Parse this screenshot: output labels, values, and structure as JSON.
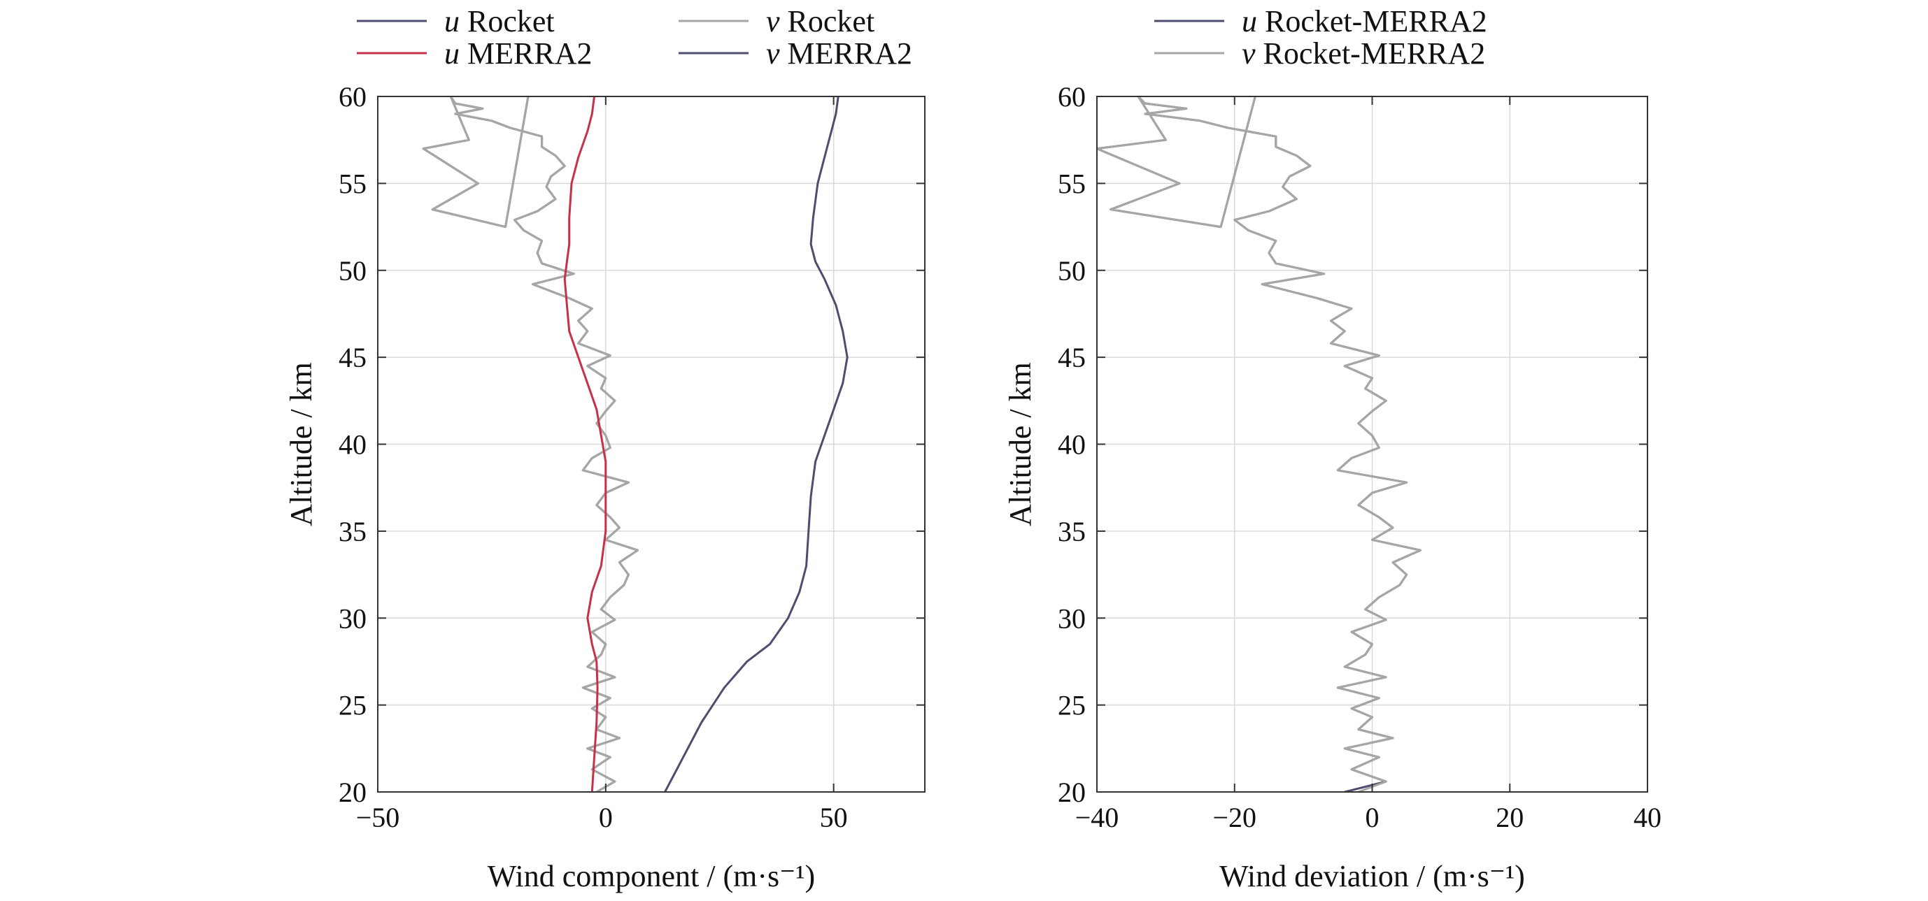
{
  "chart_data": [
    {
      "type": "line",
      "xlabel": "Wind component / (m·s⁻¹)",
      "ylabel": "Altitude / km",
      "xlim": [
        -50,
        70
      ],
      "ylim": [
        20,
        60
      ],
      "xticks": [
        -50,
        0,
        50
      ],
      "xtick_labels": [
        "−50",
        "0",
        "50"
      ],
      "yticks": [
        20,
        25,
        30,
        35,
        40,
        45,
        50,
        55,
        60
      ],
      "ytick_labels": [
        "20",
        "25",
        "30",
        "35",
        "40",
        "45",
        "50",
        "55",
        "60"
      ],
      "grid": true,
      "legend_position": "top",
      "series": [
        {
          "name": "u Rocket",
          "legend_var": "u",
          "legend_rest": " Rocket",
          "color": "#4d4d6f",
          "accent_color": "#6a5aad",
          "x": [
            -2,
            2,
            -3,
            1,
            -4,
            3,
            -2,
            0,
            -3,
            1,
            -5,
            2,
            -4,
            -1,
            0,
            -3,
            2,
            -1,
            1,
            4,
            5,
            3,
            7,
            0,
            3,
            1,
            -2,
            0,
            5,
            -5,
            -3,
            1,
            0,
            -2,
            0,
            2,
            -1,
            0,
            -4,
            1,
            -6,
            -4,
            -6,
            -3,
            -8,
            -16,
            -7,
            -14,
            -15,
            -14,
            -18,
            -20,
            -15,
            -11,
            -13,
            -12,
            -9,
            -11,
            -14,
            -14,
            -21,
            -25,
            -33,
            -27,
            -33,
            -34,
            -30,
            -40,
            -34,
            -28,
            -38,
            -22,
            -17
          ],
          "y": [
            20,
            20.6,
            21.3,
            22,
            22.5,
            23.1,
            23.6,
            24.3,
            24.8,
            25.4,
            26,
            26.6,
            27.2,
            27.9,
            28.5,
            29.2,
            29.9,
            30.5,
            31.2,
            31.9,
            32.5,
            33.2,
            33.9,
            34.5,
            35.2,
            35.8,
            36.5,
            37.2,
            37.8,
            38.5,
            39.2,
            39.8,
            40.5,
            41.2,
            41.9,
            42.5,
            43.2,
            43.8,
            44.5,
            45.1,
            45.8,
            46.5,
            47.1,
            47.8,
            48.4,
            49.2,
            49.8,
            50.4,
            51,
            51.7,
            52.3,
            52.9,
            53.4,
            54.1,
            54.8,
            55.4,
            56,
            56.6,
            57.1,
            57.7,
            58.2,
            58.6,
            59,
            59.3,
            59.6,
            60,
            57.5,
            57,
            56,
            55,
            53.5,
            52.5,
            60
          ]
        },
        {
          "name": "v Rocket",
          "legend_var": "v",
          "legend_rest": " Rocket",
          "color": "#a6a6a6",
          "accent_color": "#f0a050",
          "x": [
            -2,
            2,
            -3,
            1,
            -4,
            3,
            -2,
            0,
            -3,
            1,
            -5,
            2,
            -4,
            -1,
            0,
            -3,
            2,
            -1,
            1,
            4,
            5,
            3,
            7,
            0,
            3,
            1,
            -2,
            0,
            5,
            -5,
            -3,
            1,
            0,
            -2,
            0,
            2,
            -1,
            0,
            -4,
            1,
            -6,
            -4,
            -6,
            -3,
            -8,
            -16,
            -7,
            -14,
            -15,
            -14,
            -18,
            -20,
            -15,
            -11,
            -13,
            -12,
            -9,
            -11,
            -14,
            -14,
            -21,
            -25,
            -33,
            -27,
            -33,
            -34,
            -30,
            -40,
            -34,
            -28,
            -38,
            -22,
            -17
          ],
          "y": [
            20,
            20.6,
            21.3,
            22,
            22.5,
            23.1,
            23.6,
            24.3,
            24.8,
            25.4,
            26,
            26.6,
            27.2,
            27.9,
            28.5,
            29.2,
            29.9,
            30.5,
            31.2,
            31.9,
            32.5,
            33.2,
            33.9,
            34.5,
            35.2,
            35.8,
            36.5,
            37.2,
            37.8,
            38.5,
            39.2,
            39.8,
            40.5,
            41.2,
            41.9,
            42.5,
            43.2,
            43.8,
            44.5,
            45.1,
            45.8,
            46.5,
            47.1,
            47.8,
            48.4,
            49.2,
            49.8,
            50.4,
            51,
            51.7,
            52.3,
            52.9,
            53.4,
            54.1,
            54.8,
            55.4,
            56,
            56.6,
            57.1,
            57.7,
            58.2,
            58.6,
            59,
            59.3,
            59.6,
            60,
            57.5,
            57,
            56,
            55,
            53.5,
            52.5,
            60
          ]
        },
        {
          "name": "u MERRA2",
          "legend_var": "u",
          "legend_rest": " MERRA2",
          "color": "#c8304a",
          "x": [
            -3,
            -2.5,
            -2,
            -1.8,
            -2,
            -3,
            -4,
            -3,
            -1,
            0,
            0,
            0,
            -1,
            -2,
            -4,
            -6,
            -8,
            -8.5,
            -9,
            -8.5,
            -8,
            -8,
            -7.5,
            -6,
            -4,
            -3,
            -2.5
          ],
          "y": [
            20,
            22,
            24,
            26,
            27.5,
            28.5,
            30,
            31.5,
            33,
            35,
            37,
            39,
            40.5,
            42,
            43.5,
            45,
            46.5,
            48,
            49.5,
            50.5,
            51.5,
            53,
            55,
            56.5,
            58,
            59,
            60
          ]
        },
        {
          "name": "v MERRA2",
          "legend_var": "v",
          "legend_rest": " MERRA2",
          "color": "#4d4d6f",
          "x": [
            13,
            17,
            21,
            26,
            31,
            36,
            40,
            42.5,
            44,
            44.5,
            45,
            46,
            48,
            50,
            52,
            53,
            52,
            50.5,
            48,
            46,
            45,
            45.5,
            46.5,
            48,
            49.5,
            50.5,
            51
          ],
          "y": [
            20,
            22,
            24,
            26,
            27.5,
            28.5,
            30,
            31.5,
            33,
            35,
            37,
            39,
            40.5,
            42,
            43.5,
            45,
            46.5,
            48,
            49.5,
            50.5,
            51.5,
            53,
            55,
            56.5,
            58,
            59,
            60
          ]
        }
      ]
    },
    {
      "type": "line",
      "xlabel": "Wind deviation / (m·s⁻¹)",
      "ylabel": "Altitude / km",
      "xlim": [
        -40,
        40
      ],
      "ylim": [
        20,
        60
      ],
      "xticks": [
        -40,
        -20,
        0,
        20,
        40
      ],
      "xtick_labels": [
        "−40",
        "−20",
        "0",
        "20",
        "40"
      ],
      "yticks": [
        20,
        25,
        30,
        35,
        40,
        45,
        50,
        55,
        60
      ],
      "ytick_labels": [
        "20",
        "25",
        "30",
        "35",
        "40",
        "45",
        "50",
        "55",
        "60"
      ],
      "grid": true,
      "legend_position": "top",
      "series": [
        {
          "name": "u Rocket-MERRA2",
          "legend_var": "u",
          "legend_rest": " Rocket-MERRA2",
          "color": "#4d4d6f",
          "accent_color": "#6a5aad",
          "x": [
            -4,
            2,
            -3,
            1,
            -4,
            3,
            -2,
            0,
            -3,
            1,
            -5,
            2,
            -4,
            -1,
            0,
            -3,
            2,
            -1,
            1,
            4,
            5,
            3,
            7,
            0,
            3,
            1,
            -2,
            0,
            5,
            -5,
            -3,
            1,
            0,
            -2,
            0,
            2,
            -1,
            0,
            -4,
            1,
            -6,
            -4,
            -6,
            -3,
            -8,
            -16,
            -7,
            -14,
            -15,
            -14,
            -18,
            -20,
            -15,
            -11,
            -13,
            -12,
            -9,
            -11,
            -14,
            -14,
            -21,
            -25,
            -33,
            -27,
            -33,
            -34,
            -30,
            -40,
            -34,
            -28,
            -38,
            -22,
            -17
          ],
          "y": [
            20,
            20.6,
            21.3,
            22,
            22.5,
            23.1,
            23.6,
            24.3,
            24.8,
            25.4,
            26,
            26.6,
            27.2,
            27.9,
            28.5,
            29.2,
            29.9,
            30.5,
            31.2,
            31.9,
            32.5,
            33.2,
            33.9,
            34.5,
            35.2,
            35.8,
            36.5,
            37.2,
            37.8,
            38.5,
            39.2,
            39.8,
            40.5,
            41.2,
            41.9,
            42.5,
            43.2,
            43.8,
            44.5,
            45.1,
            45.8,
            46.5,
            47.1,
            47.8,
            48.4,
            49.2,
            49.8,
            50.4,
            51,
            51.7,
            52.3,
            52.9,
            53.4,
            54.1,
            54.8,
            55.4,
            56,
            56.6,
            57.1,
            57.7,
            58.2,
            58.6,
            59,
            59.3,
            59.6,
            60,
            57.5,
            57,
            56,
            55,
            53.5,
            52.5,
            60
          ]
        },
        {
          "name": "v Rocket-MERRA2",
          "legend_var": "v",
          "legend_rest": " Rocket-MERRA2",
          "color": "#a6a6a6",
          "accent_color": "#f0a050",
          "x": [
            -2,
            2,
            -3,
            1,
            -4,
            3,
            -2,
            0,
            -3,
            1,
            -5,
            2,
            -4,
            -1,
            0,
            -3,
            2,
            -1,
            1,
            4,
            5,
            3,
            7,
            0,
            3,
            1,
            -2,
            0,
            5,
            -5,
            -3,
            1,
            0,
            -2,
            0,
            2,
            -1,
            0,
            -4,
            1,
            -6,
            -4,
            -6,
            -3,
            -8,
            -16,
            -7,
            -14,
            -15,
            -14,
            -18,
            -20,
            -15,
            -11,
            -13,
            -12,
            -9,
            -11,
            -14,
            -14,
            -21,
            -25,
            -33,
            -27,
            -33,
            -34,
            -30,
            -40,
            -34,
            -28,
            -38,
            -22,
            -17
          ],
          "y": [
            20,
            20.6,
            21.3,
            22,
            22.5,
            23.1,
            23.6,
            24.3,
            24.8,
            25.4,
            26,
            26.6,
            27.2,
            27.9,
            28.5,
            29.2,
            29.9,
            30.5,
            31.2,
            31.9,
            32.5,
            33.2,
            33.9,
            34.5,
            35.2,
            35.8,
            36.5,
            37.2,
            37.8,
            38.5,
            39.2,
            39.8,
            40.5,
            41.2,
            41.9,
            42.5,
            43.2,
            43.8,
            44.5,
            45.1,
            45.8,
            46.5,
            47.1,
            47.8,
            48.4,
            49.2,
            49.8,
            50.4,
            51,
            51.7,
            52.3,
            52.9,
            53.4,
            54.1,
            54.8,
            55.4,
            56,
            56.6,
            57.1,
            57.7,
            58.2,
            58.6,
            59,
            59.3,
            59.6,
            60,
            57.5,
            57,
            56,
            55,
            53.5,
            52.5,
            60
          ]
        }
      ]
    }
  ]
}
